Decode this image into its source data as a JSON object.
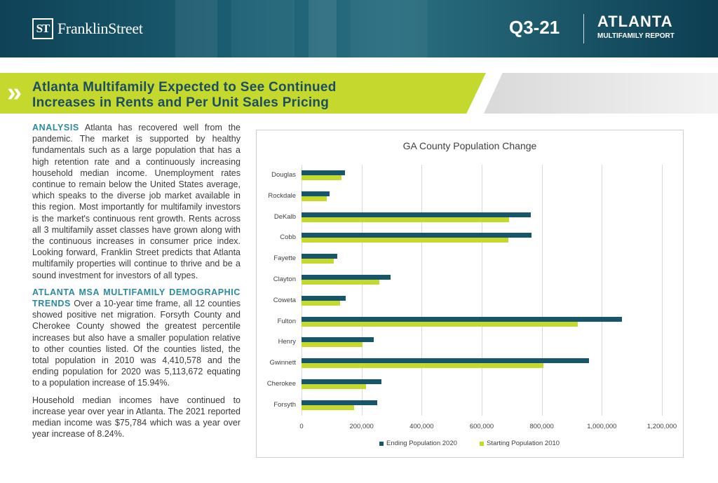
{
  "header": {
    "logo_mark": "ST",
    "logo_text": "FranklinStreet",
    "quarter": "Q3-21",
    "city": "ATLANTA",
    "report": "MULTIFAMILY REPORT"
  },
  "banner": {
    "chevrons": "»",
    "title_line1": "Atlanta Multifamily Expected to See Continued",
    "title_line2": "Increases in Rents and Per Unit Sales Pricing"
  },
  "body": {
    "p1_lead": "ANALYSIS",
    "p1_text": " Atlanta has recovered well from the pandemic. The market is supported by healthy fundamentals such as a large population that has a high retention rate and a continuously increasing household median income. Unemployment rates continue to remain below the United States average, which speaks to the diverse job market available in this region. Most importantly for multifamily investors is the market's continuous rent growth. Rents across all 3 multifamily asset classes have grown along with the continuous increases in consumer price index. Looking forward, Franklin Street predicts that Atlanta multifamily properties will continue to thrive and be a sound investment for investors of all types.",
    "p2_lead": "ATLANTA MSA MULTIFAMILY DEMOGRAPHIC TRENDS",
    "p2_text": " Over a 10-year time frame, all 12 counties showed positive net migration. Forsyth County and Cherokee County showed the greatest percentile increases but also have a smaller population relative to other counties listed. Of the counties listed, the total population in 2010 was 4,410,578 and the ending population for 2020 was 5,113,672 equating to a population increase of 15.94%.",
    "p3_text": "Household median incomes have continued to increase year over year in Atlanta. The 2021 reported median income was $75,784 which was a year over year increase of 8.24%."
  },
  "colors": {
    "header_bg": "#0f4256",
    "accent_green": "#c4d82e",
    "title_teal": "#1d4e5f",
    "lead_teal": "#2b8aa0",
    "series_2020": "#17566a",
    "series_2010": "#c4d82e"
  },
  "chart_data": {
    "type": "bar",
    "orientation": "horizontal",
    "title": "GA County Population Change",
    "categories": [
      "Douglas",
      "Rockdale",
      "DeKalb",
      "Cobb",
      "Fayette",
      "Clayton",
      "Coweta",
      "Fulton",
      "Henry",
      "Gwinnett",
      "Cherokee",
      "Forsyth"
    ],
    "series": [
      {
        "name": "Ending Population 2020",
        "color": "#17566a",
        "values": [
          144000,
          93000,
          764000,
          766000,
          119000,
          297000,
          146000,
          1066000,
          240000,
          957000,
          267000,
          251000
        ]
      },
      {
        "name": "Starting Population 2010",
        "color": "#c4d82e",
        "values": [
          133000,
          85000,
          692000,
          688000,
          107000,
          259000,
          128000,
          921000,
          204000,
          805000,
          214000,
          175000
        ]
      }
    ],
    "xlim": [
      0,
      1200000
    ],
    "xticks": [
      "0",
      "200,000",
      "400,000",
      "600,000",
      "800,000",
      "1,000,000",
      "1,200,000"
    ],
    "grid": true,
    "legend_position": "bottom"
  }
}
